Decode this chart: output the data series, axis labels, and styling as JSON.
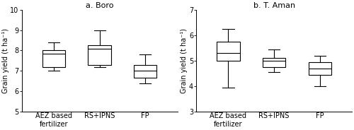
{
  "title_a": "a. Boro",
  "title_b": "b. T. Aman",
  "ylabel": "Grain yield (t ha⁻¹)",
  "categories": [
    "AEZ based\nfertilizer",
    "RS+IPNS",
    "FP"
  ],
  "boro": {
    "whislo": [
      7.0,
      7.2,
      6.4
    ],
    "q1": [
      7.2,
      7.3,
      6.65
    ],
    "med": [
      7.85,
      8.1,
      7.0
    ],
    "q3": [
      8.0,
      8.25,
      7.3
    ],
    "whishi": [
      8.4,
      9.0,
      7.8
    ],
    "ylim": [
      5,
      10
    ],
    "yticks": [
      5,
      6,
      7,
      8,
      9,
      10
    ]
  },
  "taman": {
    "whislo": [
      3.95,
      4.55,
      4.0
    ],
    "q1": [
      5.0,
      4.75,
      4.45
    ],
    "med": [
      5.3,
      5.0,
      4.7
    ],
    "q3": [
      5.75,
      5.1,
      4.95
    ],
    "whishi": [
      6.25,
      5.45,
      5.2
    ],
    "ylim": [
      3,
      7
    ],
    "yticks": [
      3,
      4,
      5,
      6,
      7
    ]
  },
  "box_color": "#ffffff",
  "line_color": "#000000",
  "bg_color": "#ffffff",
  "fontsize": 7,
  "title_fontsize": 8
}
